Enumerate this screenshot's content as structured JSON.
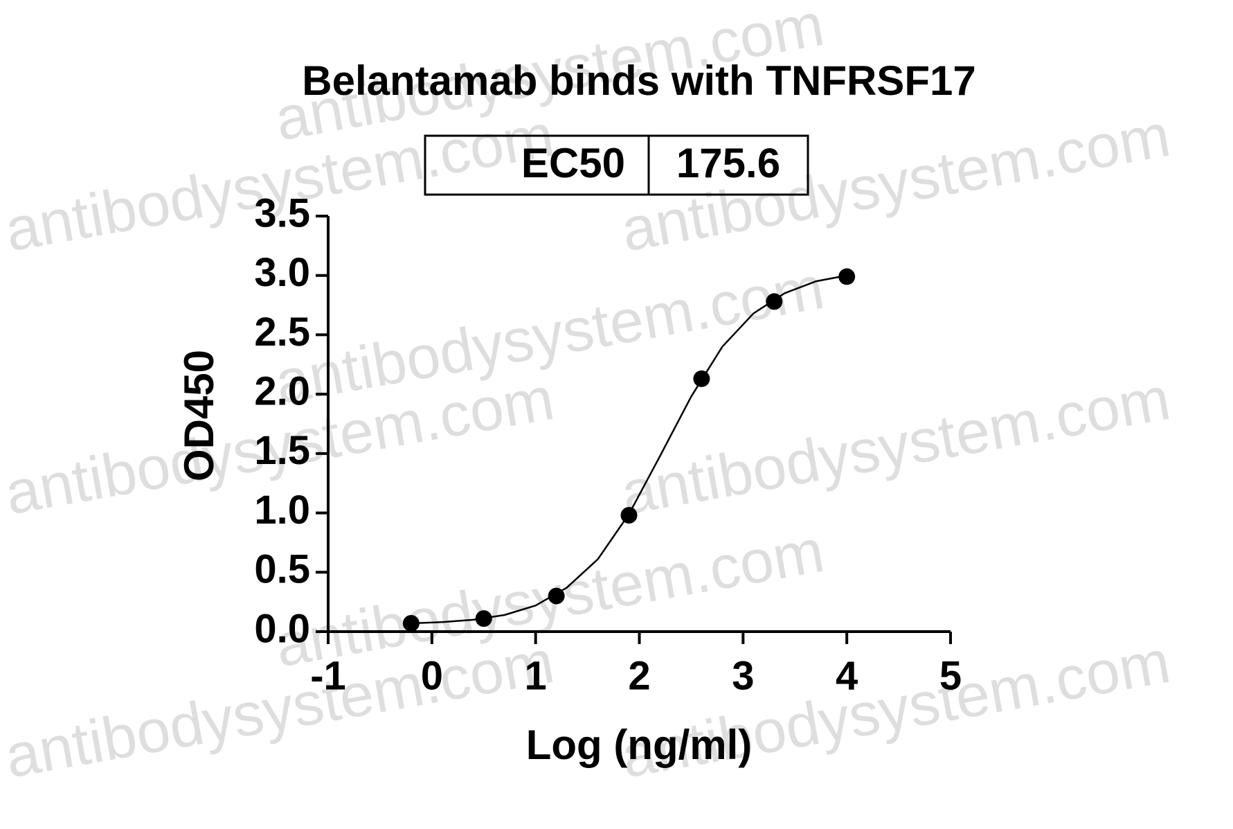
{
  "chart_data": {
    "type": "scatter",
    "title": "Belantamab binds with TNFRSF17",
    "ec50": {
      "label": "EC50",
      "value": 175.6
    },
    "xlabel": "Log (ng/ml)",
    "ylabel": "OD450",
    "watermark": "antibodysystem.com",
    "xlim": [
      -1,
      5
    ],
    "xticks": [
      -1,
      0,
      1,
      2,
      3,
      4,
      5
    ],
    "ylim": [
      0,
      3.5
    ],
    "yticks": [
      {
        "value": 0,
        "label": "0.0"
      },
      0.5,
      {
        "value": 1,
        "label": "1.0"
      },
      1.5,
      {
        "value": 2,
        "label": "2.0"
      },
      2.5,
      {
        "value": 3,
        "label": "3.0"
      },
      3.5
    ],
    "color": "#000000",
    "x": [
      -0.2,
      0.5,
      1.2,
      1.9,
      2.6,
      3.3,
      4.0
    ],
    "values": [
      0.07,
      0.11,
      0.3,
      0.98,
      2.13,
      2.78,
      2.99
    ],
    "fit": {
      "x": [
        -0.2,
        0.1,
        0.4,
        0.7,
        1.0,
        1.3,
        1.6,
        1.9,
        2.2,
        2.5,
        2.8,
        3.1,
        3.4,
        3.7,
        4.0
      ],
      "values": [
        0.07,
        0.08,
        0.1,
        0.14,
        0.22,
        0.37,
        0.61,
        0.99,
        1.48,
        1.98,
        2.4,
        2.68,
        2.85,
        2.95,
        3.0
      ]
    }
  }
}
